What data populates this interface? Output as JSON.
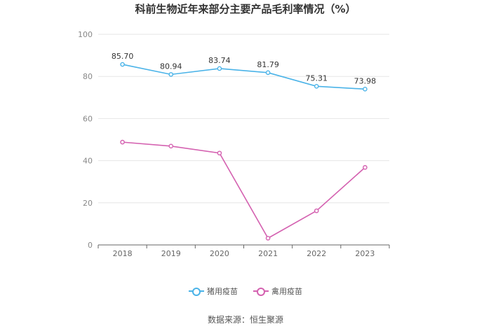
{
  "chart_data": {
    "type": "line",
    "title": "科前生物近年来部分主要产品毛利率情况（%）",
    "categories": [
      "2018",
      "2019",
      "2020",
      "2021",
      "2022",
      "2023"
    ],
    "ylim": [
      0,
      100
    ],
    "yticks": [
      0,
      20,
      40,
      60,
      80,
      100
    ],
    "grid": true,
    "legend_position": "bottom-center",
    "series": [
      {
        "name": "猪用疫苗",
        "color": "#4ab3e8",
        "values": [
          85.7,
          80.94,
          83.74,
          81.79,
          75.31,
          73.98
        ],
        "labels": [
          "85.70",
          "80.94",
          "83.74",
          "81.79",
          "75.31",
          "73.98"
        ],
        "show_labels": true
      },
      {
        "name": "禽用疫苗",
        "color": "#d461b0",
        "values": [
          48.8,
          46.9,
          43.6,
          3.2,
          16.2,
          36.8
        ],
        "show_labels": false
      }
    ]
  },
  "source_text": "数据来源：恒生聚源"
}
